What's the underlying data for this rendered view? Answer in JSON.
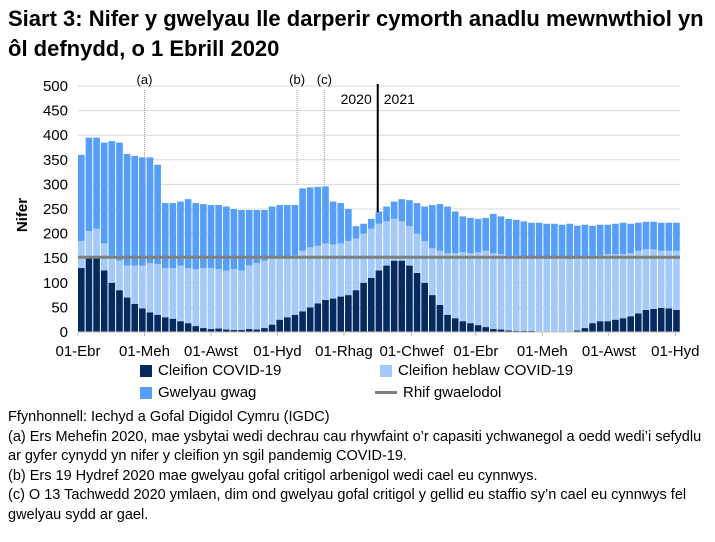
{
  "title": "Siart 3: Nifer y gwelyau lle darperir cymorth anadlu mewnwthiol yn ôl defnydd, o 1 Ebrill 2020",
  "colors": {
    "covid": "#06295f",
    "noncovid": "#a4c9fb",
    "empty": "#559ef9",
    "baseline": "#808080",
    "grid": "#d9d9d9"
  },
  "chart_data": {
    "type": "bar",
    "stacked": true,
    "ylabel": "Nifer",
    "ylim": [
      0,
      500
    ],
    "yticks": [
      0,
      50,
      100,
      150,
      200,
      250,
      300,
      350,
      400,
      450,
      500
    ],
    "grid": true,
    "legend_placement": "bottom",
    "xticks": [
      {
        "date": "2020-04-01",
        "label": "01-Ebr"
      },
      {
        "date": "2020-06-01",
        "label": "01-Meh"
      },
      {
        "date": "2020-08-01",
        "label": "01-Awst"
      },
      {
        "date": "2020-10-01",
        "label": "01-Hyd"
      },
      {
        "date": "2020-12-01",
        "label": "01-Rhag"
      },
      {
        "date": "2021-02-01",
        "label": "01-Chwef"
      },
      {
        "date": "2021-04-01",
        "label": "01-Ebr"
      },
      {
        "date": "2021-06-01",
        "label": "01-Meh"
      },
      {
        "date": "2021-08-01",
        "label": "01-Awst"
      },
      {
        "date": "2021-10-01",
        "label": "01-Hyd"
      }
    ],
    "x": [
      "2020-04-01",
      "2020-04-08",
      "2020-04-15",
      "2020-04-22",
      "2020-04-29",
      "2020-05-06",
      "2020-05-13",
      "2020-05-20",
      "2020-05-27",
      "2020-06-03",
      "2020-06-10",
      "2020-06-17",
      "2020-06-24",
      "2020-07-01",
      "2020-07-08",
      "2020-07-15",
      "2020-07-22",
      "2020-07-29",
      "2020-08-05",
      "2020-08-12",
      "2020-08-19",
      "2020-08-26",
      "2020-09-02",
      "2020-09-09",
      "2020-09-16",
      "2020-09-23",
      "2020-09-30",
      "2020-10-07",
      "2020-10-14",
      "2020-10-21",
      "2020-10-28",
      "2020-11-04",
      "2020-11-11",
      "2020-11-18",
      "2020-11-25",
      "2020-12-02",
      "2020-12-09",
      "2020-12-16",
      "2020-12-23",
      "2020-12-30",
      "2021-01-06",
      "2021-01-13",
      "2021-01-20",
      "2021-01-27",
      "2021-02-03",
      "2021-02-10",
      "2021-02-17",
      "2021-02-24",
      "2021-03-03",
      "2021-03-10",
      "2021-03-17",
      "2021-03-24",
      "2021-03-31",
      "2021-04-07",
      "2021-04-14",
      "2021-04-21",
      "2021-04-28",
      "2021-05-05",
      "2021-05-12",
      "2021-05-19",
      "2021-05-26",
      "2021-06-02",
      "2021-06-09",
      "2021-06-16",
      "2021-06-23",
      "2021-06-30",
      "2021-07-07",
      "2021-07-14",
      "2021-07-21",
      "2021-07-28",
      "2021-08-04",
      "2021-08-11",
      "2021-08-18",
      "2021-08-25",
      "2021-09-01",
      "2021-09-08",
      "2021-09-15",
      "2021-09-22",
      "2021-09-29"
    ],
    "series": [
      {
        "name": "Cleifion COVID-19",
        "color": "#06295f",
        "values": [
          130,
          155,
          150,
          125,
          100,
          85,
          70,
          57,
          48,
          40,
          35,
          30,
          27,
          22,
          18,
          12,
          8,
          6,
          7,
          5,
          4,
          4,
          6,
          5,
          8,
          15,
          25,
          30,
          35,
          42,
          50,
          58,
          65,
          68,
          72,
          75,
          85,
          100,
          110,
          125,
          135,
          145,
          145,
          135,
          120,
          100,
          75,
          55,
          35,
          28,
          22,
          18,
          14,
          10,
          6,
          5,
          3,
          2,
          2,
          2,
          1,
          1,
          1,
          1,
          1,
          3,
          8,
          18,
          22,
          22,
          25,
          28,
          32,
          38,
          45,
          47,
          49,
          48,
          45
        ]
      },
      {
        "name": "Cleifion heblaw COVID-19",
        "color": "#a4c9fb",
        "values": [
          55,
          50,
          60,
          55,
          55,
          60,
          65,
          78,
          87,
          100,
          103,
          100,
          103,
          113,
          112,
          116,
          122,
          124,
          121,
          120,
          124,
          121,
          129,
          135,
          137,
          135,
          125,
          120,
          120,
          123,
          122,
          117,
          115,
          110,
          108,
          110,
          105,
          100,
          100,
          95,
          90,
          85,
          80,
          80,
          80,
          85,
          95,
          110,
          125,
          132,
          140,
          142,
          148,
          155,
          154,
          153,
          152,
          153,
          148,
          150,
          149,
          147,
          149,
          149,
          147,
          147,
          144,
          137,
          133,
          136,
          133,
          130,
          128,
          127,
          123,
          121,
          116,
          117,
          120
        ]
      },
      {
        "name": "Gwelyau gwag",
        "color": "#559ef9",
        "values": [
          175,
          190,
          185,
          205,
          233,
          240,
          227,
          223,
          220,
          215,
          202,
          132,
          132,
          130,
          140,
          134,
          130,
          128,
          130,
          130,
          122,
          123,
          113,
          108,
          103,
          105,
          108,
          108,
          103,
          127,
          122,
          120,
          116,
          87,
          82,
          65,
          25,
          20,
          20,
          25,
          30,
          35,
          45,
          53,
          62,
          70,
          88,
          95,
          95,
          85,
          73,
          72,
          68,
          67,
          80,
          77,
          75,
          73,
          75,
          70,
          72,
          72,
          70,
          68,
          72,
          66,
          66,
          61,
          63,
          60,
          62,
          64,
          60,
          57,
          56,
          56,
          57,
          57,
          57
        ]
      }
    ],
    "baseline": {
      "name": "Rhif gwaelodol",
      "value": 152
    },
    "annotations": [
      {
        "date": "2020-06-01",
        "label": "(a)"
      },
      {
        "date": "2020-10-19",
        "label": "(b)"
      },
      {
        "date": "2020-11-13",
        "label": "(c)"
      }
    ],
    "year_divider": {
      "date": "2021-01-01",
      "left_label": "2020",
      "right_label": "2021"
    }
  },
  "notes": [
    "Ffynhonnell: Iechyd a Gofal Digidol Cymru (IGDC)",
    "(a) Ers Mehefin 2020, mae ysbytai wedi dechrau cau rhywfaint o’r capasiti ychwanegol a oedd wedi’i sefydlu ar gyfer cynydd yn nifer y cleifion yn sgil pandemig COVID-19.",
    "(b) Ers 19 Hydref 2020 mae gwelyau gofal critigol arbenigol wedi cael eu cynnwys.",
    "(c) O 13 Tachwedd 2020 ymlaen, dim ond gwelyau gofal critigol y gellid eu staffio sy’n cael eu cynnwys fel gwelyau sydd ar gael."
  ]
}
